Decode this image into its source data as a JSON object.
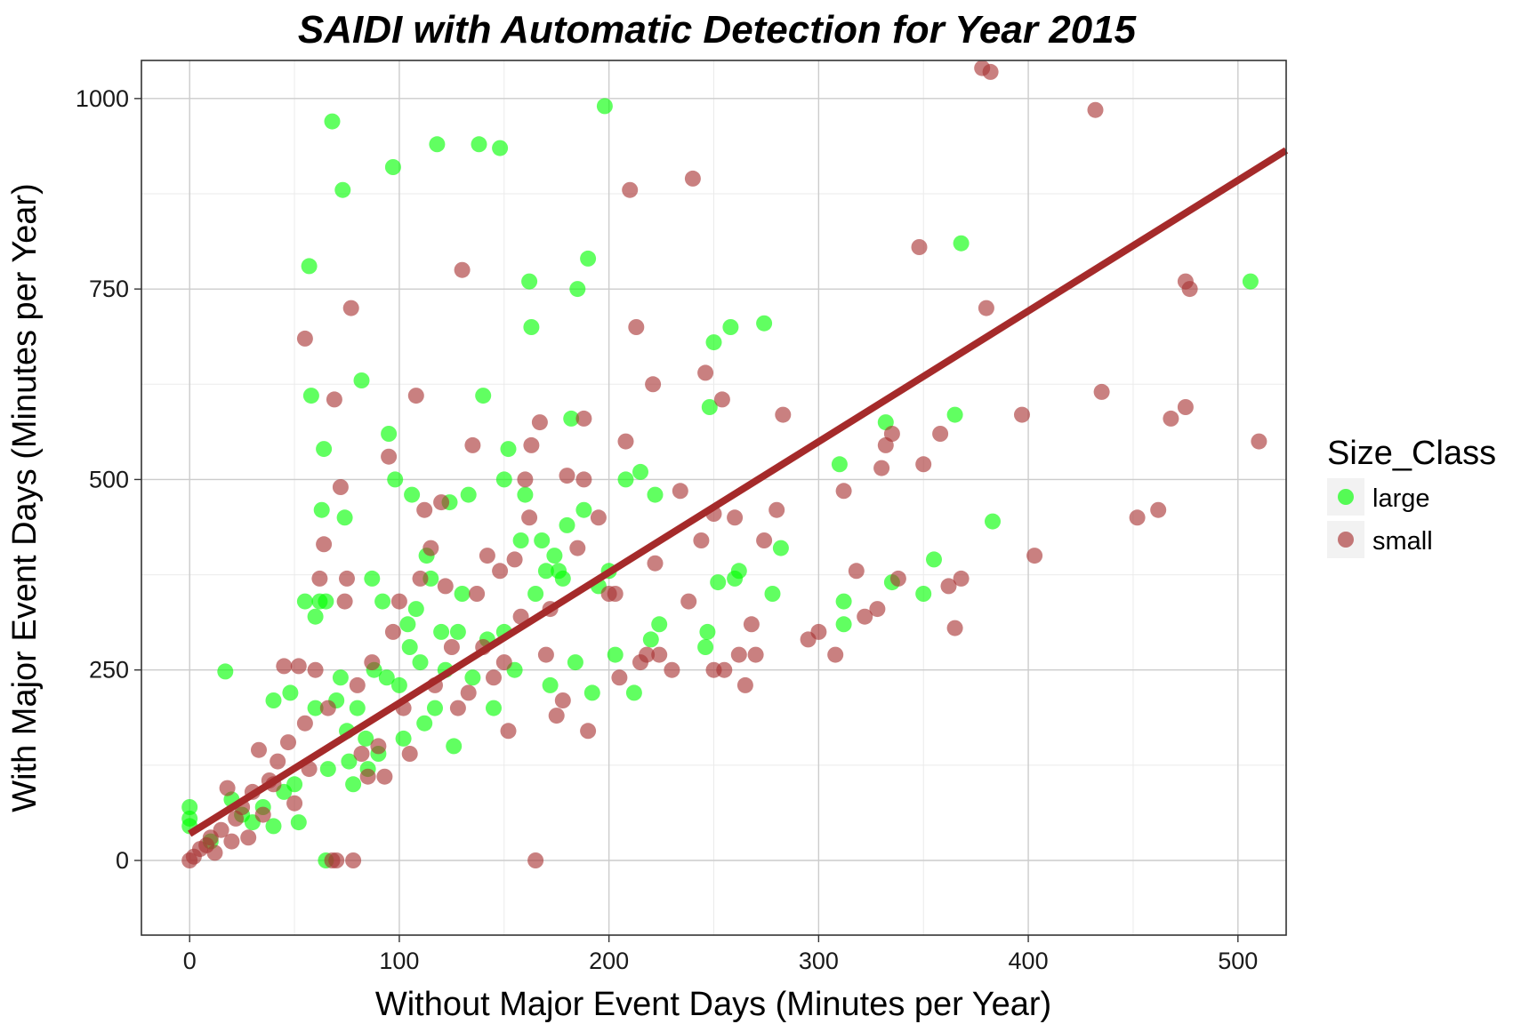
{
  "chart_data": {
    "type": "scatter",
    "title": "SAIDI with Automatic Detection for Year 2015",
    "xlabel": "Without Major Event Days (Minutes per Year)",
    "ylabel": "With Major Event Days (Minutes per Year)",
    "xlim": [
      -23,
      523
    ],
    "ylim": [
      -98,
      1050
    ],
    "x_ticks": [
      0,
      100,
      200,
      300,
      400,
      500
    ],
    "y_ticks": [
      0,
      250,
      500,
      750,
      1000
    ],
    "x_tick_labels": [
      "0",
      "100",
      "200",
      "300",
      "400",
      "500"
    ],
    "y_tick_labels": [
      "0",
      "250",
      "500",
      "750",
      "1000"
    ],
    "grid": true,
    "legend": {
      "title": "Size_Class",
      "position": "right",
      "entries": [
        "large",
        "small"
      ]
    },
    "series": [
      {
        "name": "large",
        "color": "#00ff00",
        "points": [
          [
            0,
            70
          ],
          [
            0,
            55
          ],
          [
            0,
            45
          ],
          [
            10,
            25
          ],
          [
            17,
            248
          ],
          [
            20,
            80
          ],
          [
            25,
            60
          ],
          [
            30,
            50
          ],
          [
            35,
            70
          ],
          [
            40,
            45
          ],
          [
            40,
            210
          ],
          [
            45,
            90
          ],
          [
            48,
            220
          ],
          [
            50,
            100
          ],
          [
            52,
            50
          ],
          [
            55,
            340
          ],
          [
            57,
            780
          ],
          [
            58,
            610
          ],
          [
            60,
            320
          ],
          [
            60,
            200
          ],
          [
            62,
            340
          ],
          [
            63,
            460
          ],
          [
            64,
            540
          ],
          [
            65,
            340
          ],
          [
            65,
            0
          ],
          [
            66,
            120
          ],
          [
            68,
            970
          ],
          [
            70,
            210
          ],
          [
            72,
            240
          ],
          [
            73,
            880
          ],
          [
            74,
            450
          ],
          [
            75,
            170
          ],
          [
            76,
            130
          ],
          [
            78,
            100
          ],
          [
            80,
            200
          ],
          [
            82,
            630
          ],
          [
            84,
            160
          ],
          [
            85,
            120
          ],
          [
            87,
            370
          ],
          [
            88,
            250
          ],
          [
            90,
            140
          ],
          [
            92,
            340
          ],
          [
            94,
            240
          ],
          [
            95,
            560
          ],
          [
            97,
            910
          ],
          [
            98,
            500
          ],
          [
            100,
            230
          ],
          [
            102,
            160
          ],
          [
            104,
            310
          ],
          [
            105,
            280
          ],
          [
            106,
            480
          ],
          [
            108,
            330
          ],
          [
            110,
            260
          ],
          [
            112,
            180
          ],
          [
            113,
            400
          ],
          [
            115,
            370
          ],
          [
            117,
            200
          ],
          [
            118,
            940
          ],
          [
            120,
            300
          ],
          [
            122,
            250
          ],
          [
            124,
            470
          ],
          [
            126,
            150
          ],
          [
            128,
            300
          ],
          [
            130,
            350
          ],
          [
            133,
            480
          ],
          [
            135,
            240
          ],
          [
            138,
            940
          ],
          [
            140,
            610
          ],
          [
            142,
            290
          ],
          [
            145,
            200
          ],
          [
            148,
            935
          ],
          [
            150,
            300
          ],
          [
            150,
            500
          ],
          [
            152,
            540
          ],
          [
            155,
            250
          ],
          [
            158,
            420
          ],
          [
            160,
            480
          ],
          [
            162,
            760
          ],
          [
            163,
            700
          ],
          [
            165,
            350
          ],
          [
            168,
            420
          ],
          [
            170,
            380
          ],
          [
            172,
            230
          ],
          [
            174,
            400
          ],
          [
            176,
            380
          ],
          [
            178,
            370
          ],
          [
            180,
            440
          ],
          [
            182,
            580
          ],
          [
            184,
            260
          ],
          [
            185,
            750
          ],
          [
            188,
            460
          ],
          [
            190,
            790
          ],
          [
            192,
            220
          ],
          [
            195,
            360
          ],
          [
            198,
            990
          ],
          [
            200,
            380
          ],
          [
            203,
            270
          ],
          [
            208,
            500
          ],
          [
            212,
            220
          ],
          [
            215,
            510
          ],
          [
            220,
            290
          ],
          [
            222,
            480
          ],
          [
            224,
            310
          ],
          [
            246,
            280
          ],
          [
            247,
            300
          ],
          [
            248,
            595
          ],
          [
            250,
            680
          ],
          [
            252,
            365
          ],
          [
            258,
            700
          ],
          [
            260,
            370
          ],
          [
            262,
            380
          ],
          [
            274,
            705
          ],
          [
            278,
            350
          ],
          [
            282,
            410
          ],
          [
            310,
            520
          ],
          [
            312,
            340
          ],
          [
            312,
            310
          ],
          [
            332,
            575
          ],
          [
            335,
            365
          ],
          [
            350,
            350
          ],
          [
            355,
            395
          ],
          [
            365,
            585
          ],
          [
            368,
            810
          ],
          [
            383,
            445
          ],
          [
            506,
            760
          ]
        ]
      },
      {
        "name": "small",
        "color": "#a83232",
        "points": [
          [
            0,
            0
          ],
          [
            2,
            5
          ],
          [
            5,
            15
          ],
          [
            8,
            20
          ],
          [
            10,
            30
          ],
          [
            12,
            10
          ],
          [
            15,
            40
          ],
          [
            18,
            95
          ],
          [
            20,
            25
          ],
          [
            22,
            55
          ],
          [
            25,
            70
          ],
          [
            28,
            30
          ],
          [
            30,
            90
          ],
          [
            33,
            145
          ],
          [
            35,
            60
          ],
          [
            38,
            105
          ],
          [
            40,
            100
          ],
          [
            42,
            130
          ],
          [
            45,
            255
          ],
          [
            47,
            155
          ],
          [
            50,
            75
          ],
          [
            52,
            255
          ],
          [
            55,
            180
          ],
          [
            55,
            685
          ],
          [
            57,
            120
          ],
          [
            60,
            250
          ],
          [
            62,
            370
          ],
          [
            64,
            415
          ],
          [
            66,
            200
          ],
          [
            68,
            0
          ],
          [
            69,
            605
          ],
          [
            70,
            0
          ],
          [
            72,
            490
          ],
          [
            74,
            340
          ],
          [
            75,
            370
          ],
          [
            77,
            725
          ],
          [
            78,
            0
          ],
          [
            80,
            230
          ],
          [
            82,
            140
          ],
          [
            85,
            110
          ],
          [
            87,
            260
          ],
          [
            90,
            150
          ],
          [
            93,
            110
          ],
          [
            95,
            530
          ],
          [
            97,
            300
          ],
          [
            100,
            340
          ],
          [
            102,
            200
          ],
          [
            105,
            140
          ],
          [
            108,
            610
          ],
          [
            110,
            370
          ],
          [
            112,
            460
          ],
          [
            115,
            410
          ],
          [
            117,
            230
          ],
          [
            120,
            470
          ],
          [
            122,
            360
          ],
          [
            125,
            280
          ],
          [
            128,
            200
          ],
          [
            130,
            775
          ],
          [
            133,
            220
          ],
          [
            135,
            545
          ],
          [
            137,
            350
          ],
          [
            140,
            280
          ],
          [
            142,
            400
          ],
          [
            145,
            240
          ],
          [
            148,
            380
          ],
          [
            150,
            260
          ],
          [
            152,
            170
          ],
          [
            155,
            395
          ],
          [
            158,
            320
          ],
          [
            160,
            500
          ],
          [
            162,
            450
          ],
          [
            163,
            545
          ],
          [
            165,
            0
          ],
          [
            167,
            575
          ],
          [
            170,
            270
          ],
          [
            172,
            330
          ],
          [
            175,
            190
          ],
          [
            178,
            210
          ],
          [
            180,
            505
          ],
          [
            185,
            410
          ],
          [
            188,
            500
          ],
          [
            188,
            580
          ],
          [
            190,
            170
          ],
          [
            195,
            450
          ],
          [
            200,
            350
          ],
          [
            203,
            350
          ],
          [
            205,
            240
          ],
          [
            208,
            550
          ],
          [
            210,
            880
          ],
          [
            213,
            700
          ],
          [
            215,
            260
          ],
          [
            218,
            270
          ],
          [
            221,
            625
          ],
          [
            222,
            390
          ],
          [
            224,
            270
          ],
          [
            230,
            250
          ],
          [
            234,
            485
          ],
          [
            238,
            340
          ],
          [
            240,
            895
          ],
          [
            244,
            420
          ],
          [
            246,
            640
          ],
          [
            250,
            455
          ],
          [
            250,
            250
          ],
          [
            254,
            605
          ],
          [
            255,
            250
          ],
          [
            260,
            450
          ],
          [
            262,
            270
          ],
          [
            265,
            230
          ],
          [
            268,
            310
          ],
          [
            270,
            270
          ],
          [
            274,
            420
          ],
          [
            280,
            460
          ],
          [
            283,
            585
          ],
          [
            295,
            290
          ],
          [
            300,
            300
          ],
          [
            308,
            270
          ],
          [
            312,
            485
          ],
          [
            318,
            380
          ],
          [
            322,
            320
          ],
          [
            328,
            330
          ],
          [
            330,
            515
          ],
          [
            332,
            545
          ],
          [
            335,
            560
          ],
          [
            338,
            370
          ],
          [
            348,
            805
          ],
          [
            350,
            520
          ],
          [
            358,
            560
          ],
          [
            362,
            360
          ],
          [
            365,
            305
          ],
          [
            368,
            370
          ],
          [
            378,
            1040
          ],
          [
            380,
            725
          ],
          [
            382,
            1035
          ],
          [
            397,
            585
          ],
          [
            403,
            400
          ],
          [
            432,
            985
          ],
          [
            435,
            615
          ],
          [
            452,
            450
          ],
          [
            462,
            460
          ],
          [
            468,
            580
          ],
          [
            475,
            760
          ],
          [
            475,
            595
          ],
          [
            477,
            750
          ],
          [
            510,
            550
          ]
        ]
      },
      {
        "name": "",
        "type": "line",
        "color": "#a52a2a",
        "points": [
          [
            0,
            35
          ],
          [
            523,
            932
          ]
        ]
      }
    ]
  }
}
